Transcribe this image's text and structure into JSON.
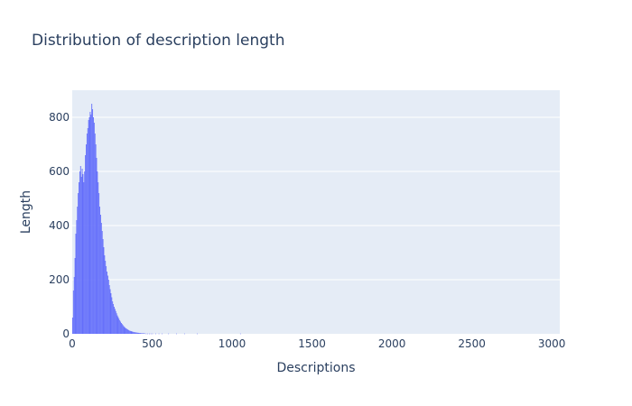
{
  "chart_data": {
    "type": "bar",
    "title": "Distribution of description length",
    "xlabel": "Descriptions",
    "ylabel": "Length",
    "xlim": [
      0,
      3050
    ],
    "ylim": [
      0,
      900
    ],
    "x_ticks": [
      0,
      500,
      1000,
      1500,
      2000,
      2500,
      3000
    ],
    "y_ticks": [
      0,
      200,
      400,
      600,
      800
    ],
    "x_tick_labels": [
      "0",
      "500",
      "1000",
      "1500",
      "2000",
      "2500",
      "3000"
    ],
    "y_tick_labels": [
      "0",
      "200",
      "400",
      "600",
      "800"
    ],
    "bin_width": 5,
    "bins": [
      {
        "x": 0,
        "y": 60
      },
      {
        "x": 5,
        "y": 160
      },
      {
        "x": 10,
        "y": 210
      },
      {
        "x": 15,
        "y": 280
      },
      {
        "x": 20,
        "y": 370
      },
      {
        "x": 25,
        "y": 420
      },
      {
        "x": 30,
        "y": 470
      },
      {
        "x": 35,
        "y": 520
      },
      {
        "x": 40,
        "y": 560
      },
      {
        "x": 45,
        "y": 600
      },
      {
        "x": 50,
        "y": 620
      },
      {
        "x": 55,
        "y": 580
      },
      {
        "x": 60,
        "y": 610
      },
      {
        "x": 65,
        "y": 590
      },
      {
        "x": 70,
        "y": 560
      },
      {
        "x": 75,
        "y": 600
      },
      {
        "x": 80,
        "y": 660
      },
      {
        "x": 85,
        "y": 700
      },
      {
        "x": 90,
        "y": 740
      },
      {
        "x": 95,
        "y": 760
      },
      {
        "x": 100,
        "y": 790
      },
      {
        "x": 105,
        "y": 800
      },
      {
        "x": 110,
        "y": 820
      },
      {
        "x": 115,
        "y": 810
      },
      {
        "x": 120,
        "y": 850
      },
      {
        "x": 125,
        "y": 830
      },
      {
        "x": 130,
        "y": 800
      },
      {
        "x": 135,
        "y": 780
      },
      {
        "x": 140,
        "y": 740
      },
      {
        "x": 145,
        "y": 700
      },
      {
        "x": 150,
        "y": 650
      },
      {
        "x": 155,
        "y": 600
      },
      {
        "x": 160,
        "y": 560
      },
      {
        "x": 165,
        "y": 520
      },
      {
        "x": 170,
        "y": 470
      },
      {
        "x": 175,
        "y": 440
      },
      {
        "x": 180,
        "y": 410
      },
      {
        "x": 185,
        "y": 380
      },
      {
        "x": 190,
        "y": 350
      },
      {
        "x": 195,
        "y": 320
      },
      {
        "x": 200,
        "y": 290
      },
      {
        "x": 205,
        "y": 270
      },
      {
        "x": 210,
        "y": 250
      },
      {
        "x": 215,
        "y": 230
      },
      {
        "x": 220,
        "y": 215
      },
      {
        "x": 225,
        "y": 200
      },
      {
        "x": 230,
        "y": 180
      },
      {
        "x": 235,
        "y": 165
      },
      {
        "x": 240,
        "y": 150
      },
      {
        "x": 245,
        "y": 135
      },
      {
        "x": 250,
        "y": 120
      },
      {
        "x": 255,
        "y": 110
      },
      {
        "x": 260,
        "y": 100
      },
      {
        "x": 265,
        "y": 92
      },
      {
        "x": 270,
        "y": 84
      },
      {
        "x": 275,
        "y": 76
      },
      {
        "x": 280,
        "y": 68
      },
      {
        "x": 285,
        "y": 62
      },
      {
        "x": 290,
        "y": 56
      },
      {
        "x": 295,
        "y": 50
      },
      {
        "x": 300,
        "y": 45
      },
      {
        "x": 305,
        "y": 40
      },
      {
        "x": 310,
        "y": 36
      },
      {
        "x": 315,
        "y": 32
      },
      {
        "x": 320,
        "y": 28
      },
      {
        "x": 325,
        "y": 25
      },
      {
        "x": 330,
        "y": 22
      },
      {
        "x": 335,
        "y": 20
      },
      {
        "x": 340,
        "y": 18
      },
      {
        "x": 345,
        "y": 16
      },
      {
        "x": 350,
        "y": 14
      },
      {
        "x": 355,
        "y": 12
      },
      {
        "x": 360,
        "y": 11
      },
      {
        "x": 365,
        "y": 10
      },
      {
        "x": 370,
        "y": 9
      },
      {
        "x": 375,
        "y": 8
      },
      {
        "x": 380,
        "y": 7
      },
      {
        "x": 385,
        "y": 6
      },
      {
        "x": 390,
        "y": 6
      },
      {
        "x": 395,
        "y": 5
      },
      {
        "x": 400,
        "y": 5
      },
      {
        "x": 405,
        "y": 4
      },
      {
        "x": 410,
        "y": 4
      },
      {
        "x": 415,
        "y": 3
      },
      {
        "x": 420,
        "y": 3
      },
      {
        "x": 425,
        "y": 3
      },
      {
        "x": 430,
        "y": 2
      },
      {
        "x": 435,
        "y": 2
      },
      {
        "x": 440,
        "y": 2
      },
      {
        "x": 445,
        "y": 2
      },
      {
        "x": 450,
        "y": 2
      },
      {
        "x": 460,
        "y": 1
      },
      {
        "x": 470,
        "y": 1
      },
      {
        "x": 480,
        "y": 1
      },
      {
        "x": 490,
        "y": 1
      },
      {
        "x": 500,
        "y": 1
      },
      {
        "x": 520,
        "y": 1
      },
      {
        "x": 540,
        "y": 1
      },
      {
        "x": 560,
        "y": 1
      },
      {
        "x": 600,
        "y": 1
      },
      {
        "x": 650,
        "y": 1
      },
      {
        "x": 700,
        "y": 1
      },
      {
        "x": 780,
        "y": 1
      },
      {
        "x": 1050,
        "y": 1
      }
    ],
    "bar_color": "#636efa",
    "plot_background": "#e5ecf6",
    "gridline_color": "#ffffff",
    "legend": "none",
    "grid": true
  }
}
